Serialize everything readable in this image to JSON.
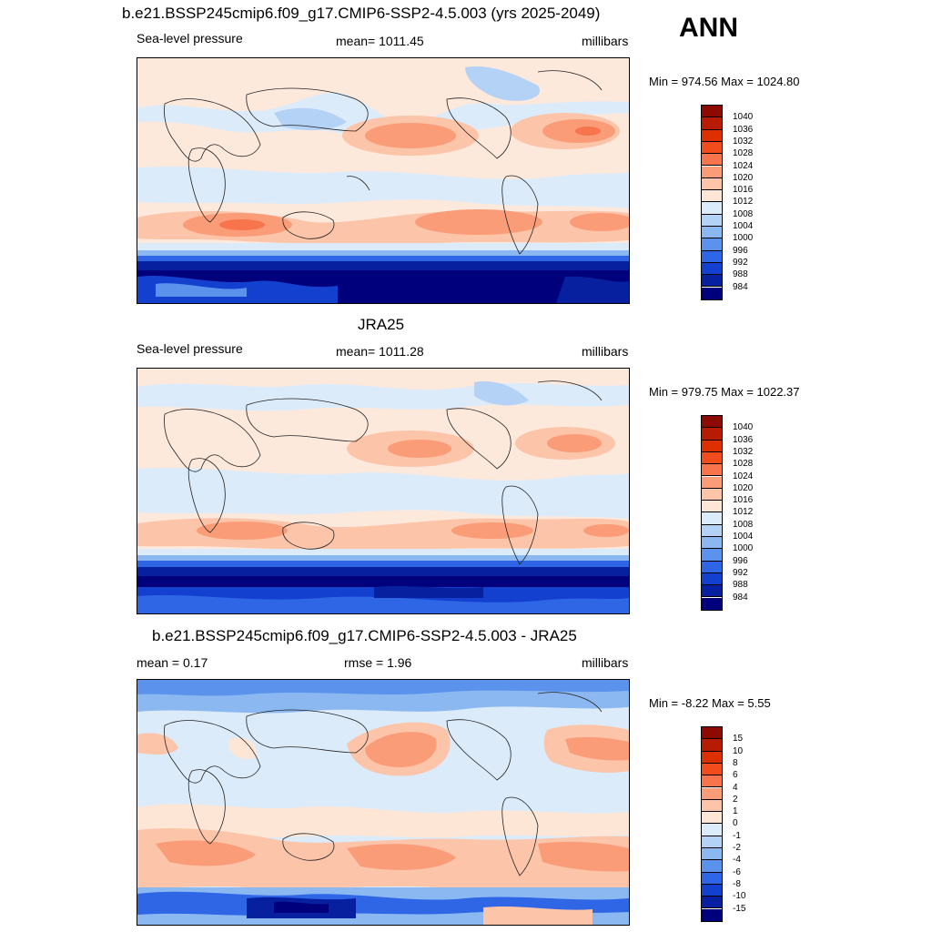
{
  "season": "ANN",
  "panels": [
    {
      "title": "b.e21.BSSP245cmip6.f09_g17.CMIP6-SSP2-4.5.003 (yrs 2025-2049)",
      "left_label": "Sea-level pressure",
      "center_label": "mean= 1011.45",
      "right_label": "millibars",
      "minmax": "Min = 974.56 Max = 1024.80",
      "colorbar": {
        "labels": [
          "1040",
          "1036",
          "1032",
          "1028",
          "1024",
          "1020",
          "1016",
          "1012",
          "1008",
          "1004",
          "1000",
          "996",
          "992",
          "988",
          "984"
        ],
        "colors": [
          "#8c0a00",
          "#b81c00",
          "#dc3000",
          "#f04c1c",
          "#f8744c",
          "#fa9c78",
          "#fcc4a8",
          "#fde6d6",
          "#dcebfa",
          "#b4d2f6",
          "#8cb8f2",
          "#5a92ec",
          "#2e66e6",
          "#1440d0",
          "#0620a0",
          "#00007c"
        ]
      }
    },
    {
      "title": "JRA25",
      "left_label": "Sea-level pressure",
      "center_label": "mean= 1011.28",
      "right_label": "millibars",
      "minmax": "Min = 979.75 Max = 1022.37",
      "colorbar": {
        "labels": [
          "1040",
          "1036",
          "1032",
          "1028",
          "1024",
          "1020",
          "1016",
          "1012",
          "1008",
          "1004",
          "1000",
          "996",
          "992",
          "988",
          "984"
        ],
        "colors": [
          "#8c0a00",
          "#b81c00",
          "#dc3000",
          "#f04c1c",
          "#f8744c",
          "#fa9c78",
          "#fcc4a8",
          "#fde6d6",
          "#dcebfa",
          "#b4d2f6",
          "#8cb8f2",
          "#5a92ec",
          "#2e66e6",
          "#1440d0",
          "#0620a0",
          "#00007c"
        ]
      }
    },
    {
      "title": "b.e21.BSSP245cmip6.f09_g17.CMIP6-SSP2-4.5.003 - JRA25",
      "left_label": "mean =   0.17",
      "center_label": "rmse =   1.96",
      "right_label": "millibars",
      "minmax": "Min =  -8.22 Max =   5.55",
      "colorbar": {
        "labels": [
          "15",
          "10",
          "8",
          "6",
          "4",
          "2",
          "1",
          "0",
          "-1",
          "-2",
          "-4",
          "-6",
          "-8",
          "-10",
          "-15"
        ],
        "colors": [
          "#8c0a00",
          "#b81c00",
          "#dc3000",
          "#f04c1c",
          "#f8744c",
          "#fa9c78",
          "#fcc4a8",
          "#fde6d6",
          "#dcebfa",
          "#b4d2f6",
          "#8cb8f2",
          "#5a92ec",
          "#2e66e6",
          "#1440d0",
          "#0620a0",
          "#00007c"
        ]
      }
    }
  ]
}
